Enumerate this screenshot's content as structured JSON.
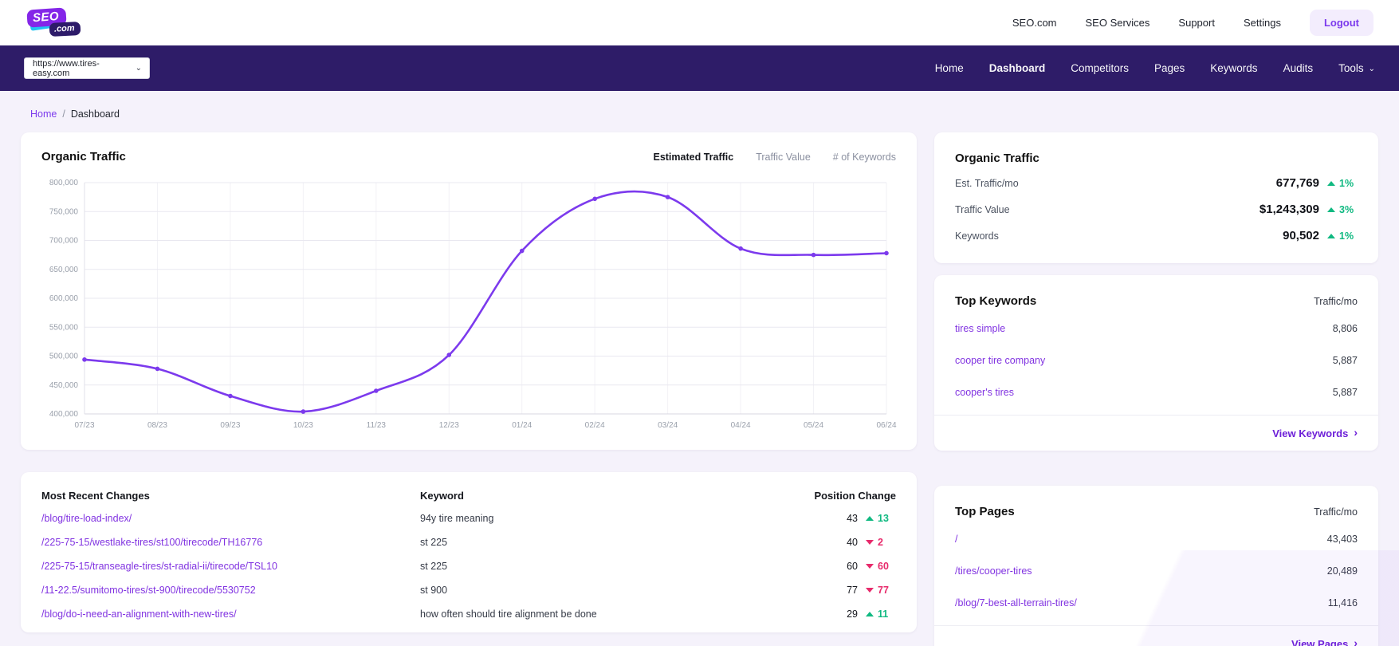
{
  "header": {
    "logo": {
      "main": "SEO",
      "sub": ".com"
    },
    "nav": [
      {
        "label": "SEO.com"
      },
      {
        "label": "SEO Services"
      },
      {
        "label": "Support"
      },
      {
        "label": "Settings"
      }
    ],
    "logout_label": "Logout"
  },
  "site_nav": {
    "site_selector_value": "https://www.tires-easy.com",
    "items": [
      {
        "label": "Home",
        "active": false
      },
      {
        "label": "Dashboard",
        "active": true
      },
      {
        "label": "Competitors",
        "active": false
      },
      {
        "label": "Pages",
        "active": false
      },
      {
        "label": "Keywords",
        "active": false
      },
      {
        "label": "Audits",
        "active": false
      },
      {
        "label": "Tools",
        "active": false,
        "has_dropdown": true
      }
    ]
  },
  "breadcrumb": {
    "home": "Home",
    "separator": "/",
    "current": "Dashboard"
  },
  "traffic_chart_card": {
    "title": "Organic Traffic",
    "tabs": [
      {
        "label": "Estimated Traffic",
        "active": true
      },
      {
        "label": "Traffic Value",
        "active": false
      },
      {
        "label": "# of Keywords",
        "active": false
      }
    ]
  },
  "chart_data": {
    "type": "line",
    "title": "Organic Traffic - Estimated Traffic",
    "x": [
      "07/23",
      "08/23",
      "09/23",
      "10/23",
      "11/23",
      "12/23",
      "01/24",
      "02/24",
      "03/24",
      "04/24",
      "05/24",
      "06/24"
    ],
    "series": [
      {
        "name": "Estimated Traffic",
        "values": [
          494000,
          478000,
          431000,
          404000,
          440000,
          502000,
          682000,
          772000,
          775000,
          686000,
          675000,
          678000
        ]
      }
    ],
    "ylim": [
      400000,
      800000
    ],
    "ytick_step": 50000,
    "grid": true,
    "legend": "none",
    "line_color": "#7c3aed"
  },
  "stats_card": {
    "title": "Organic Traffic",
    "rows": [
      {
        "label": "Est. Traffic/mo",
        "value": "677,769",
        "change": "1%",
        "direction": "up"
      },
      {
        "label": "Traffic Value",
        "value": "$1,243,309",
        "change": "3%",
        "direction": "up"
      },
      {
        "label": "Keywords",
        "value": "90,502",
        "change": "1%",
        "direction": "up"
      }
    ]
  },
  "top_keywords_card": {
    "title": "Top Keywords",
    "column_header": "Traffic/mo",
    "rows": [
      {
        "keyword": "tires simple",
        "traffic": "8,806"
      },
      {
        "keyword": "cooper tire company",
        "traffic": "5,887"
      },
      {
        "keyword": "cooper's tires",
        "traffic": "5,887"
      }
    ],
    "footer_link": "View Keywords",
    "chevron": "›"
  },
  "recent_changes_card": {
    "headers": {
      "page": "Most Recent Changes",
      "keyword": "Keyword",
      "position": "Position Change"
    },
    "rows": [
      {
        "page": "/blog/tire-load-index/",
        "keyword": "94y tire meaning",
        "position": "43",
        "change": "13",
        "direction": "up"
      },
      {
        "page": "/225-75-15/westlake-tires/st100/tirecode/TH16776",
        "keyword": "st 225",
        "position": "40",
        "change": "2",
        "direction": "down"
      },
      {
        "page": "/225-75-15/transeagle-tires/st-radial-ii/tirecode/TSL10",
        "keyword": "st 225",
        "position": "60",
        "change": "60",
        "direction": "down"
      },
      {
        "page": "/11-22.5/sumitomo-tires/st-900/tirecode/5530752",
        "keyword": "st 900",
        "position": "77",
        "change": "77",
        "direction": "down"
      },
      {
        "page": "/blog/do-i-need-an-alignment-with-new-tires/",
        "keyword": "how often should tire alignment be done",
        "position": "29",
        "change": "11",
        "direction": "up"
      }
    ]
  },
  "top_pages_card": {
    "title": "Top Pages",
    "column_header": "Traffic/mo",
    "rows": [
      {
        "page": "/",
        "traffic": "43,403"
      },
      {
        "page": "/tires/cooper-tires",
        "traffic": "20,489"
      },
      {
        "page": "/blog/7-best-all-terrain-tires/",
        "traffic": "11,416"
      }
    ],
    "footer_link": "View Pages",
    "chevron": "›"
  },
  "colors": {
    "brand_purple": "#8426e8",
    "navbar_purple": "#2e1c68",
    "link_purple": "#8133e1",
    "accent_purple": "#7c3aed",
    "up_green": "#10b981",
    "down_pink": "#e72a6b",
    "page_background": "#f5f2fb"
  }
}
